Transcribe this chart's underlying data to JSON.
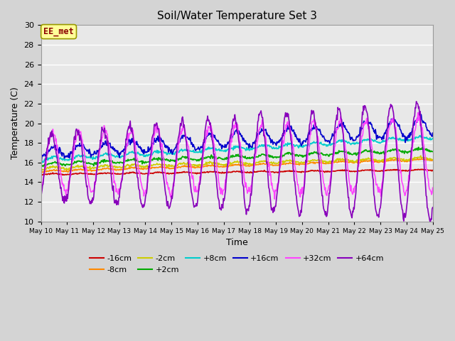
{
  "title": "Soil/Water Temperature Set 3",
  "xlabel": "Time",
  "ylabel": "Temperature (C)",
  "ylim": [
    10,
    30
  ],
  "yticks": [
    10,
    12,
    14,
    16,
    18,
    20,
    22,
    24,
    26,
    28,
    30
  ],
  "fig_bg": "#d4d4d4",
  "plot_bg": "#e8e8e8",
  "annotation_text": "EE_met",
  "annotation_color": "#8b0000",
  "annotation_bg": "#ffff99",
  "annotation_border": "#999900",
  "series": {
    "-16cm": {
      "color": "#cc0000",
      "lw": 1.2
    },
    "-8cm": {
      "color": "#ff8800",
      "lw": 1.2
    },
    "-2cm": {
      "color": "#cccc00",
      "lw": 1.2
    },
    "+2cm": {
      "color": "#00aa00",
      "lw": 1.2
    },
    "+8cm": {
      "color": "#00cccc",
      "lw": 1.2
    },
    "+16cm": {
      "color": "#0000cc",
      "lw": 1.2
    },
    "+32cm": {
      "color": "#ff44ff",
      "lw": 1.2
    },
    "+64cm": {
      "color": "#8800bb",
      "lw": 1.2
    }
  },
  "legend_order": [
    "-16cm",
    "-8cm",
    "-2cm",
    "+2cm",
    "+8cm",
    "+16cm",
    "+32cm",
    "+64cm"
  ],
  "xtick_labels": [
    "May 10",
    "May 11",
    "May 12",
    "May 13",
    "May 14",
    "May 15",
    "May 16",
    "May 17",
    "May 18",
    "May 19",
    "May 20",
    "May 21",
    "May 22",
    "May 23",
    "May 24",
    "May 25"
  ]
}
